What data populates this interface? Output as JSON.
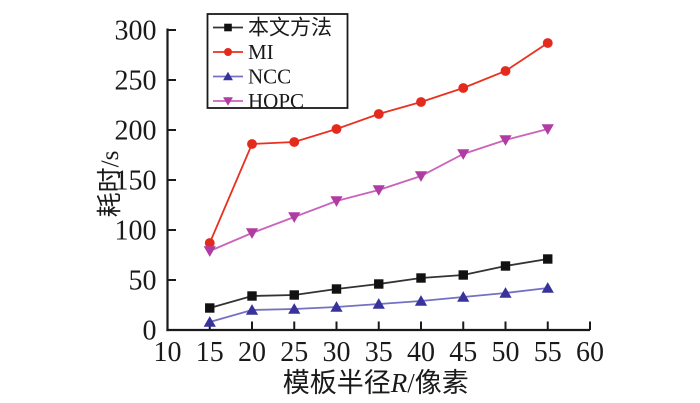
{
  "chart_data": {
    "type": "line",
    "title": "",
    "xlabel_prefix": "模板半径",
    "xlabel_italic": "R",
    "xlabel_suffix": "/像素",
    "ylabel": "耗时/s",
    "xlim": [
      10,
      60
    ],
    "ylim": [
      0,
      300
    ],
    "x_ticks": [
      10,
      15,
      20,
      25,
      30,
      35,
      40,
      45,
      50,
      55,
      60
    ],
    "y_ticks": [
      0,
      50,
      100,
      150,
      200,
      250,
      300
    ],
    "grid": false,
    "legend_position": "top-left-inside",
    "x": [
      15,
      20,
      25,
      30,
      35,
      40,
      45,
      50,
      55
    ],
    "series": [
      {
        "name": "本文方法",
        "marker": "square",
        "line_color": "#333333",
        "marker_color": "#111111",
        "values": [
          22,
          34,
          35,
          41,
          46,
          52,
          55,
          64,
          71
        ]
      },
      {
        "name": "MI",
        "marker": "circle",
        "line_color": "#e93120",
        "marker_color": "#e42a1d",
        "values": [
          87,
          186,
          188,
          201,
          216,
          228,
          242,
          259,
          287
        ]
      },
      {
        "name": "NCC",
        "marker": "triangle-up",
        "line_color": "#7570c4",
        "marker_color": "#38339a",
        "values": [
          8,
          20,
          21,
          23,
          26,
          29,
          33,
          37,
          42
        ]
      },
      {
        "name": "HOPC",
        "marker": "triangle-down",
        "line_color": "#cb63bd",
        "marker_color": "#b03ca3",
        "values": [
          79,
          97,
          113,
          129,
          140,
          154,
          176,
          190,
          201
        ]
      }
    ],
    "axis_color": "#1a1a1a",
    "background_color": "#ffffff"
  }
}
